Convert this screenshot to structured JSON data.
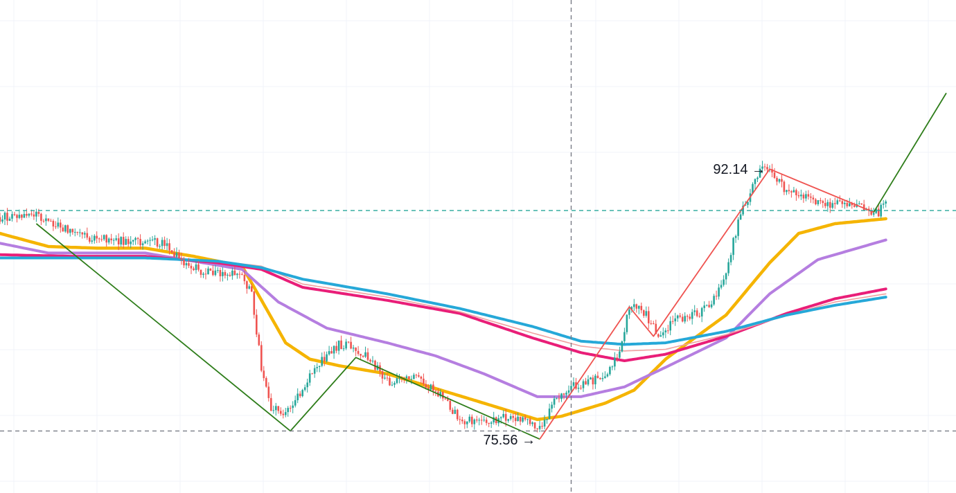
{
  "chart_data": {
    "type": "candlestick",
    "title": "",
    "xlabel": "",
    "ylabel": "",
    "y_range": [
      72.3,
      102.5
    ],
    "x_index_range": [
      0,
      395
    ],
    "grid": true,
    "legend": "none",
    "colors": {
      "up": "#26a69a",
      "down": "#ef5350",
      "zigzag_down": "#2e7d1a",
      "zigzag_up": "#ef5350",
      "ma_fast": "#f5b400",
      "ma_mid": "#b57ee0",
      "ma_slow_pink": "#e91e78",
      "ma_slow_rose": "#f0a0a0",
      "ma_slow_blue": "#26a8d8",
      "hline_green": "#26a69a",
      "hline_grey": "#787b86"
    },
    "price_anchors": [
      [
        0,
        89.2
      ],
      [
        15,
        89.4
      ],
      [
        20,
        88.9
      ],
      [
        35,
        88.0
      ],
      [
        60,
        87.6
      ],
      [
        68,
        87.7
      ],
      [
        75,
        86.4
      ],
      [
        85,
        85.8
      ],
      [
        100,
        85.6
      ],
      [
        104,
        84.5
      ],
      [
        108,
        80.0
      ],
      [
        112,
        77.6
      ],
      [
        118,
        77.0
      ],
      [
        124,
        78.5
      ],
      [
        132,
        80.3
      ],
      [
        140,
        81.4
      ],
      [
        146,
        81.3
      ],
      [
        152,
        80.6
      ],
      [
        160,
        79.1
      ],
      [
        172,
        79.3
      ],
      [
        180,
        78.6
      ],
      [
        190,
        76.8
      ],
      [
        200,
        76.6
      ],
      [
        210,
        77.0
      ],
      [
        218,
        76.6
      ],
      [
        224,
        76.1
      ],
      [
        228,
        77.8
      ],
      [
        236,
        78.8
      ],
      [
        250,
        79.4
      ],
      [
        256,
        80.8
      ],
      [
        260,
        83.7
      ],
      [
        266,
        83.4
      ],
      [
        272,
        82.0
      ],
      [
        280,
        83.0
      ],
      [
        290,
        83.4
      ],
      [
        298,
        84.8
      ],
      [
        306,
        89.4
      ],
      [
        314,
        92.0
      ],
      [
        318,
        92.3
      ],
      [
        324,
        90.9
      ],
      [
        330,
        90.6
      ],
      [
        336,
        90.2
      ],
      [
        344,
        90.0
      ],
      [
        352,
        89.9
      ],
      [
        360,
        89.6
      ],
      [
        363,
        89.4
      ],
      [
        366,
        90.3
      ]
    ],
    "zigzag_segments": [
      {
        "color": "zigzag_down",
        "points": [
          [
            15,
            88.8
          ],
          [
            120,
            76.1
          ],
          [
            147,
            80.6
          ],
          [
            223,
            75.6
          ]
        ]
      },
      {
        "color": "zigzag_up",
        "points": [
          [
            223,
            75.6
          ],
          [
            260,
            83.7
          ],
          [
            270,
            81.9
          ],
          [
            318,
            92.14
          ],
          [
            361,
            89.5
          ]
        ]
      },
      {
        "color": "zigzag_down",
        "points": [
          [
            361,
            89.5
          ],
          [
            391,
            96.8
          ]
        ]
      }
    ],
    "moving_averages": [
      {
        "key": "ma_fast",
        "width": 4.5,
        "points": [
          [
            0,
            88.2
          ],
          [
            20,
            87.4
          ],
          [
            40,
            87.3
          ],
          [
            60,
            87.3
          ],
          [
            80,
            86.8
          ],
          [
            100,
            86.2
          ],
          [
            110,
            83.6
          ],
          [
            118,
            81.5
          ],
          [
            128,
            80.5
          ],
          [
            140,
            80.1
          ],
          [
            160,
            79.6
          ],
          [
            180,
            78.7
          ],
          [
            200,
            77.8
          ],
          [
            222,
            76.8
          ],
          [
            232,
            77.0
          ],
          [
            250,
            77.8
          ],
          [
            262,
            78.6
          ],
          [
            275,
            80.5
          ],
          [
            300,
            83.2
          ],
          [
            318,
            86.4
          ],
          [
            330,
            88.2
          ],
          [
            345,
            88.8
          ],
          [
            366,
            89.1
          ]
        ]
      },
      {
        "key": "ma_mid",
        "width": 4,
        "points": [
          [
            0,
            87.6
          ],
          [
            20,
            87.0
          ],
          [
            40,
            87.0
          ],
          [
            60,
            87.0
          ],
          [
            80,
            86.5
          ],
          [
            100,
            86.0
          ],
          [
            115,
            84.0
          ],
          [
            135,
            82.4
          ],
          [
            160,
            81.5
          ],
          [
            180,
            80.7
          ],
          [
            200,
            79.6
          ],
          [
            222,
            78.2
          ],
          [
            240,
            78.2
          ],
          [
            258,
            78.8
          ],
          [
            275,
            80.0
          ],
          [
            300,
            81.8
          ],
          [
            318,
            84.5
          ],
          [
            338,
            86.6
          ],
          [
            366,
            87.8
          ]
        ]
      },
      {
        "key": "ma_slow_pink",
        "width": 4,
        "points": [
          [
            0,
            86.9
          ],
          [
            30,
            86.8
          ],
          [
            60,
            86.8
          ],
          [
            90,
            86.4
          ],
          [
            108,
            86.0
          ],
          [
            125,
            84.9
          ],
          [
            160,
            84.1
          ],
          [
            190,
            83.3
          ],
          [
            220,
            81.8
          ],
          [
            240,
            80.9
          ],
          [
            258,
            80.4
          ],
          [
            275,
            80.8
          ],
          [
            300,
            81.9
          ],
          [
            325,
            83.3
          ],
          [
            345,
            84.2
          ],
          [
            366,
            84.8
          ]
        ]
      },
      {
        "key": "ma_slow_rose",
        "width": 1.6,
        "points": [
          [
            0,
            86.7
          ],
          [
            30,
            86.7
          ],
          [
            60,
            86.7
          ],
          [
            90,
            86.5
          ],
          [
            108,
            86.2
          ],
          [
            125,
            85.1
          ],
          [
            160,
            84.3
          ],
          [
            190,
            83.4
          ],
          [
            220,
            82.1
          ],
          [
            240,
            81.3
          ],
          [
            258,
            81.0
          ],
          [
            275,
            81.1
          ],
          [
            300,
            82.0
          ],
          [
            325,
            83.2
          ],
          [
            345,
            84.0
          ],
          [
            366,
            84.5
          ]
        ]
      },
      {
        "key": "ma_slow_blue",
        "width": 4,
        "points": [
          [
            0,
            86.7
          ],
          [
            30,
            86.7
          ],
          [
            60,
            86.7
          ],
          [
            90,
            86.5
          ],
          [
            108,
            86.1
          ],
          [
            125,
            85.4
          ],
          [
            160,
            84.5
          ],
          [
            190,
            83.6
          ],
          [
            220,
            82.5
          ],
          [
            240,
            81.6
          ],
          [
            258,
            81.4
          ],
          [
            275,
            81.5
          ],
          [
            300,
            82.2
          ],
          [
            325,
            83.2
          ],
          [
            345,
            83.8
          ],
          [
            366,
            84.3
          ]
        ]
      }
    ],
    "reference_lines": [
      {
        "orientation": "horizontal",
        "value": 89.6,
        "color": "hline_green",
        "style": "dashed"
      },
      {
        "orientation": "horizontal",
        "value": 76.1,
        "color": "hline_grey",
        "style": "dashed"
      },
      {
        "orientation": "vertical",
        "x_index": 236,
        "color": "hline_grey",
        "style": "dashed"
      }
    ],
    "annotations": [
      {
        "label": "92.14 →",
        "x_index": 318,
        "y": 92.14,
        "anchor": "end"
      },
      {
        "label": "75.56 →",
        "x_index": 223,
        "y": 75.56,
        "anchor": "end"
      }
    ]
  }
}
